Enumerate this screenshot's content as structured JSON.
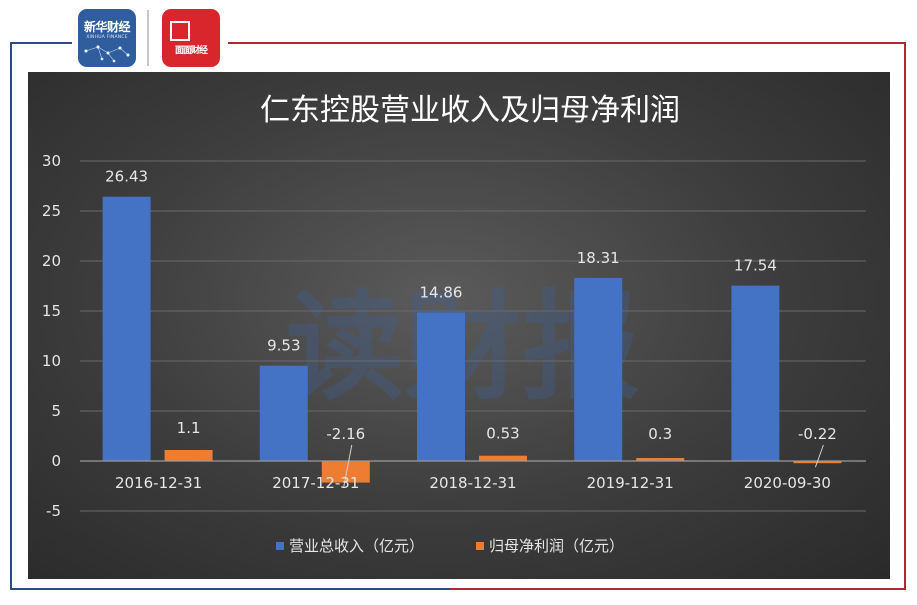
{
  "logos": {
    "xinhua": {
      "text": "新华财经",
      "subtext": "XINHUA FINANCE",
      "color": "#2f5d9e"
    },
    "mianmian": {
      "text": "面面财经",
      "color": "#d9262c"
    }
  },
  "watermark": "读财报",
  "colors": {
    "revenue": "#4472c4",
    "profit": "#ed7d31",
    "frame_blue": "#2b4b86",
    "frame_red": "#b32632"
  },
  "chart_data": {
    "type": "bar",
    "title": "仁东控股营业收入及归母净利润",
    "categories": [
      "2016-12-31",
      "2017-12-31",
      "2018-12-31",
      "2019-12-31",
      "2020-09-30"
    ],
    "series": [
      {
        "name": "营业总收入（亿元）",
        "values": [
          26.43,
          9.53,
          14.86,
          18.31,
          17.54
        ],
        "labels": [
          "26.43",
          "9.53",
          "14.86",
          "18.31",
          "17.54"
        ]
      },
      {
        "name": "归母净利润（亿元）",
        "values": [
          1.1,
          -2.16,
          0.53,
          0.3,
          -0.22
        ],
        "labels": [
          "1.1",
          "-2.16",
          "0.53",
          "0.3",
          "-0.22"
        ]
      }
    ],
    "ylim": [
      -5,
      30
    ],
    "yticks": [
      -5,
      0,
      5,
      10,
      15,
      20,
      25,
      30
    ],
    "grid": true,
    "legend": "bottom"
  }
}
